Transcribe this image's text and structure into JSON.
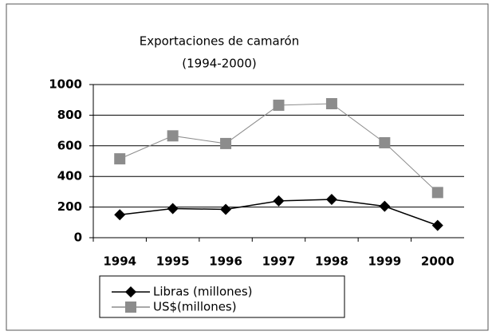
{
  "chart_data": {
    "type": "line",
    "title": "Exportaciones de camarón",
    "subtitle": "(1994-2000)",
    "categories": [
      "1994",
      "1995",
      "1996",
      "1997",
      "1998",
      "1999",
      "2000"
    ],
    "series": [
      {
        "name": "Libras (millones)",
        "color": "#000000",
        "marker": "diamond",
        "values": [
          150,
          190,
          185,
          240,
          250,
          205,
          80
        ]
      },
      {
        "name": "US$(millones)",
        "color": "#8c8c8c",
        "marker": "square",
        "values": [
          515,
          665,
          615,
          865,
          875,
          620,
          295
        ]
      }
    ],
    "ylim": [
      0,
      1000
    ],
    "yticks": [
      0,
      200,
      400,
      600,
      800,
      1000
    ],
    "grid": true,
    "legend": "bottom"
  }
}
